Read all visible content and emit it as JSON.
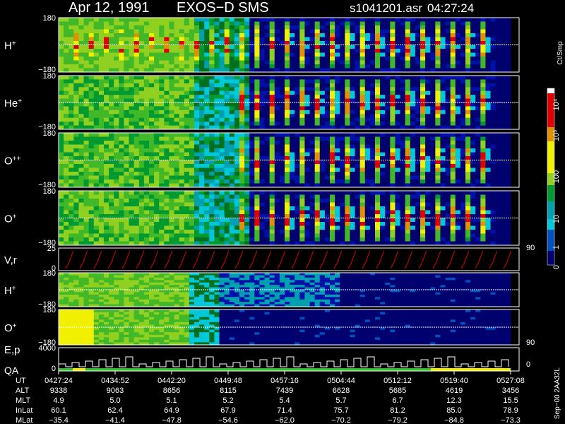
{
  "header": {
    "date": "Apr 12, 1991",
    "instrument": "EXOS−D SMS",
    "file": "s1041201.asr",
    "time": "04:27:24"
  },
  "panels": [
    {
      "label": "H",
      "sup": "+",
      "top": "180",
      "bottom": "−180"
    },
    {
      "label": "He",
      "sup": "+",
      "top": "180",
      "bottom": "−180"
    },
    {
      "label": "O",
      "sup": "++",
      "top": "180",
      "bottom": "−180"
    },
    {
      "label": "O",
      "sup": "+",
      "top": "180",
      "bottom": "−180"
    },
    {
      "label": "V,r",
      "top": "25",
      "bottom": "0",
      "right": "90"
    },
    {
      "label": "H",
      "sup": "+",
      "top": "180",
      "bottom": "−180"
    },
    {
      "label": "O",
      "sup": "+",
      "top": "180",
      "bottom": "−180",
      "right": "90"
    },
    {
      "label": "E,p",
      "label2": "QA",
      "top": "4000",
      "bottom": "0",
      "right": "0"
    }
  ],
  "colorbar": {
    "unit": "Ct/Smp",
    "labels": [
      "10⁴",
      "10³",
      "100",
      "10",
      "1",
      "0"
    ]
  },
  "table": {
    "rows": [
      {
        "name": "UT",
        "values": [
          "0427:24",
          "0434:52",
          "0442:20",
          "0449:48",
          "0457:16",
          "0504:44",
          "0512:12",
          "0519:40",
          "0527:08"
        ]
      },
      {
        "name": "ALT",
        "values": [
          "9338",
          "9063",
          "8656",
          "8115",
          "7439",
          "6628",
          "5685",
          "4619",
          "3456"
        ]
      },
      {
        "name": "MLT",
        "values": [
          "4.9",
          "5.0",
          "5.1",
          "5.2",
          "5.4",
          "5.7",
          "6.7",
          "12.3",
          "15.5"
        ]
      },
      {
        "name": "InLat",
        "values": [
          "60.1",
          "62.4",
          "64.9",
          "67.9",
          "71.4",
          "75.7",
          "81.2",
          "85.0",
          "78.9"
        ]
      },
      {
        "name": "MLat",
        "values": [
          "−35.4",
          "−41.4",
          "−47.8",
          "−54.6",
          "−62.0",
          "−70.2",
          "−79.2",
          "−84.8",
          "−73.3"
        ]
      }
    ]
  },
  "footer": "Sep−00  2AA32L"
}
